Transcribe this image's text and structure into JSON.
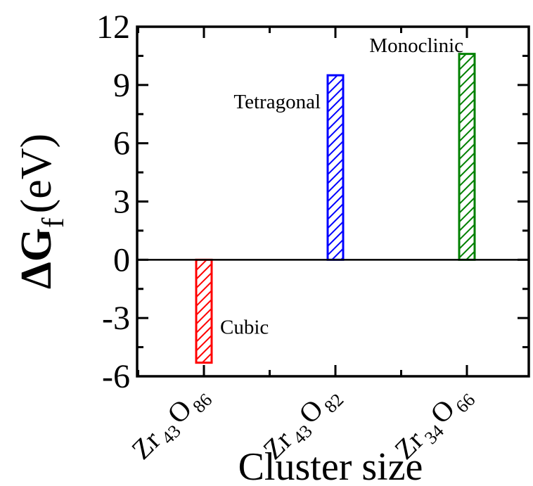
{
  "chart_data": {
    "type": "bar",
    "title": "",
    "ylabel": "ΔG",
    "ylabel_subscript": "f",
    "ylabel_unit": "(eV)",
    "xlabel": "Cluster size",
    "ylim": [
      -6,
      12
    ],
    "yticks": [
      -6,
      -3,
      0,
      3,
      6,
      9,
      12
    ],
    "ytick_labels": [
      "-6",
      "-3",
      "0",
      "3",
      "6",
      "9",
      "12"
    ],
    "categories": [
      {
        "parts": [
          [
            "Zr",
            "norm"
          ],
          [
            "43",
            "sub"
          ],
          [
            "O",
            "norm"
          ],
          [
            "86",
            "sub"
          ]
        ]
      },
      {
        "parts": [
          [
            "Zr",
            "norm"
          ],
          [
            "43",
            "sub"
          ],
          [
            "O",
            "norm"
          ],
          [
            "82",
            "sub"
          ]
        ]
      },
      {
        "parts": [
          [
            "Zr",
            "norm"
          ],
          [
            "34",
            "sub"
          ],
          [
            "O",
            "norm"
          ],
          [
            "66",
            "sub"
          ]
        ]
      }
    ],
    "values": [
      -5.3,
      9.5,
      10.6
    ],
    "bar_labels": [
      "Cubic",
      "Tetragonal",
      "Monoclinic"
    ],
    "bar_colors": [
      "#ff0000",
      "#0000ff",
      "#008000"
    ],
    "bar_fill": "diagonal-hatch",
    "grid": false,
    "legend": "none"
  }
}
